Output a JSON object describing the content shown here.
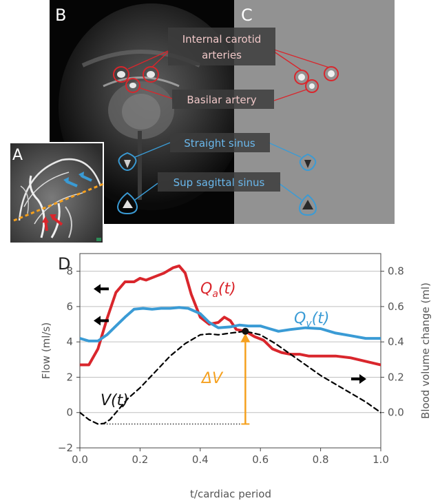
{
  "panels": {
    "a": "A",
    "b": "B",
    "c": "C",
    "d": "D"
  },
  "mri_labels": {
    "internal_carotid_line1": "Internal carotid",
    "internal_carotid_line2": "arteries",
    "basilar": "Basilar artery",
    "straight_sinus": "Straight sinus",
    "sup_sagittal_sinus": "Sup sagittal sinus"
  },
  "colors": {
    "artery_red": "#d9262c",
    "vein_blue": "#3a9bd5",
    "volume_black": "#000000",
    "delta_orange": "#f5a01e",
    "label_pink": "#f0c8c8",
    "label_blue": "#6ab8ec",
    "grid": "#bfbfbf",
    "axis_text": "#555555"
  },
  "chart_data": {
    "type": "line",
    "xlabel": "t/cardiac period",
    "ylabel_left": "Flow (ml/s)",
    "ylabel_right": "Blood volume change (ml)",
    "xlim": [
      0.0,
      1.0
    ],
    "ylim_left": [
      -2,
      9
    ],
    "ylim_right": [
      -0.2,
      0.9
    ],
    "x_ticks": [
      "0.0",
      "0.2",
      "0.4",
      "0.6",
      "0.8",
      "1.0"
    ],
    "y_ticks_left": [
      "-2",
      "0",
      "2",
      "4",
      "6",
      "8"
    ],
    "y_ticks_right": [
      "0.0",
      "0.2",
      "0.4",
      "0.6",
      "0.8"
    ],
    "grid": "horizontal",
    "series": [
      {
        "name": "Qa(t)",
        "axis": "left",
        "style": "solid",
        "x": [
          0.0,
          0.03,
          0.06,
          0.09,
          0.12,
          0.15,
          0.18,
          0.2,
          0.22,
          0.25,
          0.28,
          0.31,
          0.33,
          0.35,
          0.37,
          0.4,
          0.43,
          0.46,
          0.48,
          0.5,
          0.52,
          0.55,
          0.58,
          0.61,
          0.64,
          0.67,
          0.7,
          0.73,
          0.76,
          0.8,
          0.85,
          0.9,
          0.95,
          1.0
        ],
        "y": [
          2.7,
          2.7,
          3.6,
          5.3,
          6.8,
          7.4,
          7.4,
          7.6,
          7.5,
          7.7,
          7.9,
          8.2,
          8.3,
          7.9,
          6.7,
          5.4,
          5.0,
          5.1,
          5.4,
          5.2,
          4.7,
          4.6,
          4.3,
          4.1,
          3.6,
          3.4,
          3.3,
          3.3,
          3.2,
          3.2,
          3.2,
          3.1,
          2.9,
          2.7
        ]
      },
      {
        "name": "Qv(t)",
        "axis": "left",
        "style": "solid",
        "x": [
          0.0,
          0.03,
          0.06,
          0.09,
          0.12,
          0.15,
          0.18,
          0.21,
          0.24,
          0.27,
          0.3,
          0.33,
          0.36,
          0.4,
          0.43,
          0.46,
          0.5,
          0.53,
          0.56,
          0.6,
          0.63,
          0.66,
          0.7,
          0.75,
          0.8,
          0.85,
          0.9,
          0.95,
          1.0
        ],
        "y": [
          4.2,
          4.05,
          4.05,
          4.4,
          4.9,
          5.4,
          5.85,
          5.9,
          5.85,
          5.9,
          5.9,
          5.95,
          5.9,
          5.6,
          5.1,
          4.8,
          4.85,
          4.95,
          4.9,
          4.9,
          4.75,
          4.6,
          4.7,
          4.8,
          4.75,
          4.5,
          4.35,
          4.2,
          4.2
        ]
      },
      {
        "name": "V(t)",
        "axis": "right",
        "style": "dashed",
        "x": [
          0.0,
          0.03,
          0.06,
          0.08,
          0.1,
          0.13,
          0.16,
          0.2,
          0.25,
          0.3,
          0.35,
          0.4,
          0.43,
          0.46,
          0.5,
          0.55,
          0.6,
          0.65,
          0.7,
          0.75,
          0.8,
          0.85,
          0.9,
          0.95,
          1.0
        ],
        "y": [
          0.0,
          -0.04,
          -0.065,
          -0.062,
          -0.04,
          0.02,
          0.08,
          0.14,
          0.23,
          0.32,
          0.39,
          0.44,
          0.445,
          0.44,
          0.45,
          0.46,
          0.44,
          0.39,
          0.33,
          0.27,
          0.21,
          0.16,
          0.11,
          0.06,
          0.0
        ]
      }
    ],
    "annotations": {
      "qa": "Q",
      "qa_sub": "a",
      "qa_tail": "(t)",
      "qv": "Q",
      "qv_sub": "v",
      "qv_tail": "(t)",
      "vt": "V(t)",
      "delta_v": "ΔV",
      "delta_v_x": 0.55,
      "delta_v_from": -0.065,
      "delta_v_to": 0.46
    },
    "direction_arrows": [
      {
        "side": "left",
        "y_right": 0.7
      },
      {
        "side": "left",
        "y_right": 0.52
      },
      {
        "side": "right",
        "y_right": 0.19
      }
    ]
  }
}
